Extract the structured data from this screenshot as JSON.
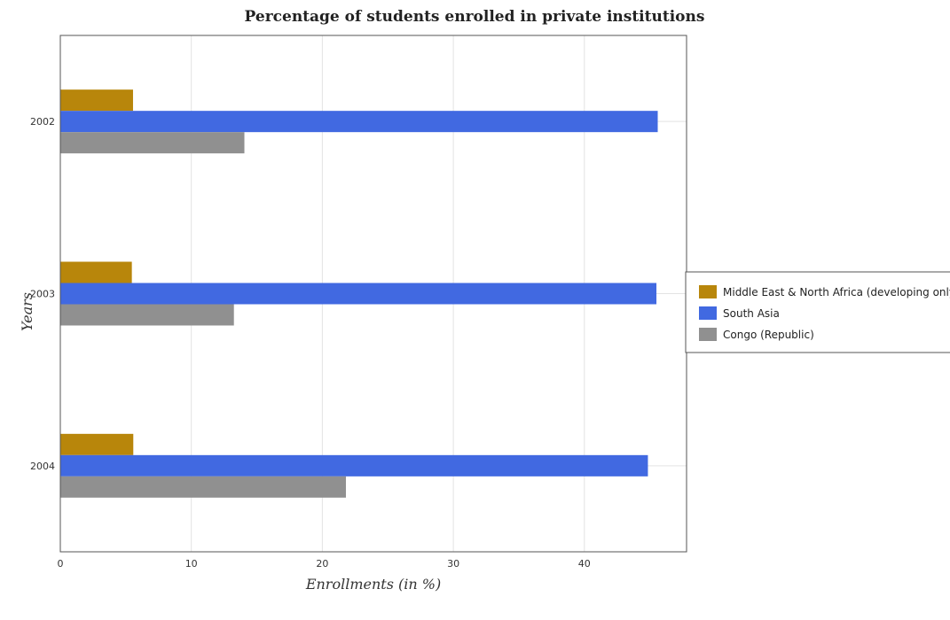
{
  "chart_data": {
    "type": "bar",
    "orientation": "horizontal",
    "title": "Percentage of students enrolled in private institutions",
    "xlabel": "Enrollments (in %)",
    "ylabel": "Years",
    "categories": [
      "2002",
      "2003",
      "2004"
    ],
    "series": [
      {
        "name": "Middle East & North Africa (developing only)",
        "color": "#b8860b",
        "values": [
          5.55,
          5.46,
          5.57
        ]
      },
      {
        "name": "South Asia",
        "color": "#4169e1",
        "values": [
          45.6,
          45.5,
          44.85
        ]
      },
      {
        "name": "Congo (Republic)",
        "color": "#909090",
        "values": [
          14.05,
          13.25,
          21.8
        ]
      }
    ],
    "xlim": [
      0,
      47.8
    ],
    "xticks": [
      0,
      10,
      20,
      30,
      40
    ],
    "grid": true,
    "legend_position": "right"
  }
}
